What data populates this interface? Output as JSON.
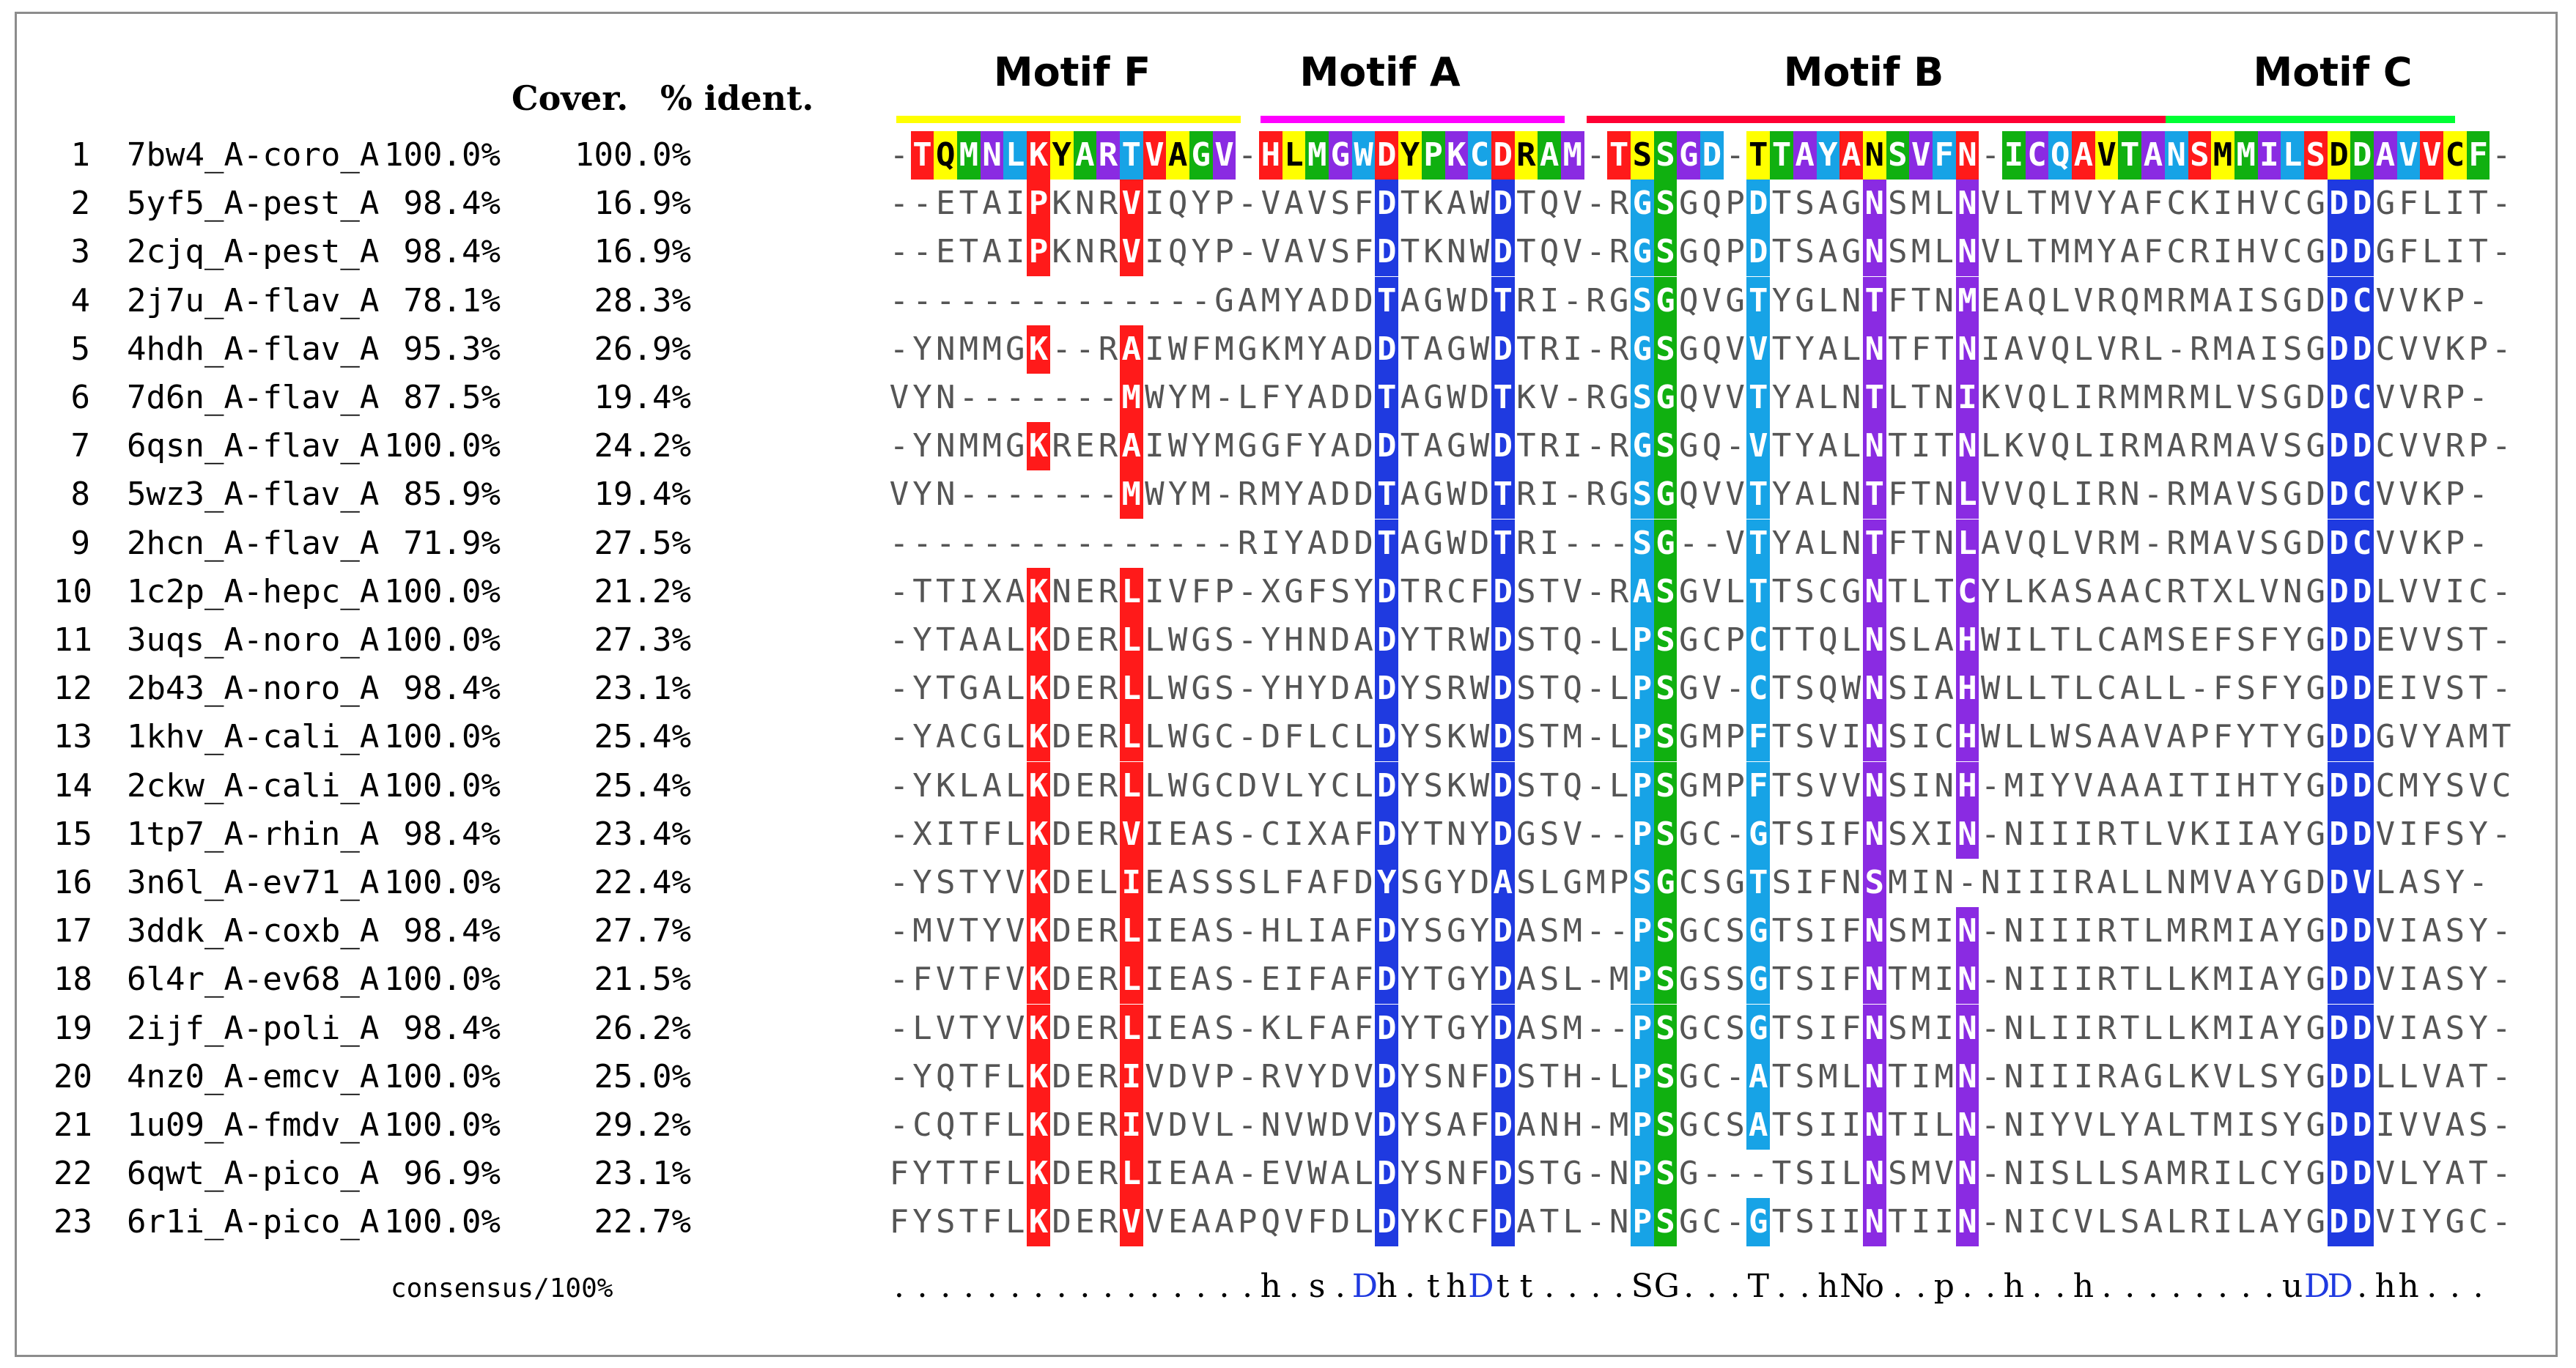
{
  "headers": {
    "cover": "Cover.",
    "identity": "% ident.",
    "consensus_label": "consensus/100%"
  },
  "motifs": [
    {
      "label": "Motif F",
      "color": "#ffff00"
    },
    {
      "label": "Motif A",
      "color": "#ff00ff"
    },
    {
      "label": "Motif B",
      "color": "#ff0033"
    },
    {
      "label": "Motif C",
      "color": "#00ff33"
    }
  ],
  "colors": {
    "green": "#10b010",
    "red": "#ff1a1a",
    "cyan": "#17a3e6",
    "blue": "#1f3ae0",
    "purple": "#8a2be2",
    "yellow": "#ffff00",
    "plain_text": "#555555"
  },
  "rows": [
    {
      "index": "1",
      "name": "7bw4_A-coro_A",
      "cover": "100.0%",
      "ident": "100.0%",
      "seq": "-TQMNLKYARTVAGV-HLMGWDYPKCDRAM-TSSGD-TTAYANSVFN-ICQAVTANSMMILSDDAVVCF-"
    },
    {
      "index": "2",
      "name": "5yf5_A-pest_A",
      "cover": "98.4%",
      "ident": "16.9%",
      "seq": "--ETAIPKNRVIQYP-VAVSFDTKAWDTQV-RGSGQPDTSAGNSMLNVLTMVYAFCKIHVCGDDGFLIT-"
    },
    {
      "index": "3",
      "name": "2cjq_A-pest_A",
      "cover": "98.4%",
      "ident": "16.9%",
      "seq": "--ETAIPKNRVIQYP-VAVSFDTKNWDTQV-RGSGQPDTSAGNSMLNVLTMMYAFCRIHVCGDDGFLIT-"
    },
    {
      "index": "4",
      "name": "2j7u_A-flav_A",
      "cover": "78.1%",
      "ident": "28.3%",
      "seq": "--------------GAMYADDTAGWDTRI-RGSGQVGTYGLNTFTNMEAQLVRQMRMAISGDDCVVKP-"
    },
    {
      "index": "5",
      "name": "4hdh_A-flav_A",
      "cover": "95.3%",
      "ident": "26.9%",
      "seq": "-YNMMGK--RAIWFMGKMYADDTAGWDTRI-RGSGQVVTYALNTFTNIAVQLVRL-RMAISGDDCVVKP-"
    },
    {
      "index": "6",
      "name": "7d6n_A-flav_A",
      "cover": "87.5%",
      "ident": "19.4%",
      "seq": "VYN-------MWYM-LFYADDTAGWDTKV-RGSGQVVTYALNTLTNIKVQLIRMMRMLVSGDDCVVRP-"
    },
    {
      "index": "7",
      "name": "6qsn_A-flav_A",
      "cover": "100.0%",
      "ident": "24.2%",
      "seq": "-YNMMGKRERAIWYMGGFYADDTAGWDTRI-RGSGQ-VTYALNTITNLKVQLIRMARMAVSGDDCVVRP-"
    },
    {
      "index": "8",
      "name": "5wz3_A-flav_A",
      "cover": "85.9%",
      "ident": "19.4%",
      "seq": "VYN-------MWYM-RMYADDTAGWDTRI-RGSGQVVTYALNTFTNLVVQLIRN-RMAVSGDDCVVKP-"
    },
    {
      "index": "9",
      "name": "2hcn_A-flav_A",
      "cover": "71.9%",
      "ident": "27.5%",
      "seq": "---------------RIYADDTAGWDTRI---SG--VTYALNTFTNLAVQLVRM-RMAVSGDDCVVKP-"
    },
    {
      "index": "10",
      "name": "1c2p_A-hepc_A",
      "cover": "100.0%",
      "ident": "21.2%",
      "seq": "-TTIXAKNERLIVFP-XGFSYDTRCFDSTV-RASGVLTTSCGNTLTCYLKASAACRTXLVNGDDLVVIC-"
    },
    {
      "index": "11",
      "name": "3uqs_A-noro_A",
      "cover": "100.0%",
      "ident": "27.3%",
      "seq": "-YTAALKDERLLWGS-YHNDADYTRWDSTQ-LPSGCPCTTQLNSLAHWILTLCAMSEFSFYGDDEVVST-"
    },
    {
      "index": "12",
      "name": "2b43_A-noro_A",
      "cover": "98.4%",
      "ident": "23.1%",
      "seq": "-YTGALKDERLLWGS-YHYDADYSRWDSTQ-LPSGV-CTSQWNSIAHWLLTLCALL-FSFYGDDEIVST-"
    },
    {
      "index": "13",
      "name": "1khv_A-cali_A",
      "cover": "100.0%",
      "ident": "25.4%",
      "seq": "-YACGLKDERLLWGC-DFLCLDYSKWDSTM-LPSGMPFTSVINSICHWLLWSAAVAPFYTYGDDGVYAMT"
    },
    {
      "index": "14",
      "name": "2ckw_A-cali_A",
      "cover": "100.0%",
      "ident": "25.4%",
      "seq": "-YKLALKDERLLWGCDVLYCLDYSKWDSTQ-LPSGMPFTSVVNSINH-MIYVAAAITIHTYGDDCMYSVC"
    },
    {
      "index": "15",
      "name": "1tp7_A-rhin_A",
      "cover": "98.4%",
      "ident": "23.4%",
      "seq": "-XITFLKDERVIEAS-CIXAFDYTNYDGSV--PSGC-GTSIFNSXIN-NIIIRTLVKIIAYGDDVIFSY-"
    },
    {
      "index": "16",
      "name": "3n6l_A-ev71_A",
      "cover": "100.0%",
      "ident": "22.4%",
      "seq": "-YSTYVKDELIEASSSLFAFDYSGYDASLGMPSGCSGTSIFNSMIN-NIIIRALLNMVAYGDDVLASY-"
    },
    {
      "index": "17",
      "name": "3ddk_A-coxb_A",
      "cover": "98.4%",
      "ident": "27.7%",
      "seq": "-MVTYVKDERLIEAS-HLIAFDYSGYDASM--PSGCSGTSIFNSMIN-NIIIRTLMRMIAYGDDVIASY-"
    },
    {
      "index": "18",
      "name": "6l4r_A-ev68_A",
      "cover": "100.0%",
      "ident": "21.5%",
      "seq": "-FVTFVKDERLIEAS-EIFAFDYTGYDASL-MPSGSSGTSIFNTMIN-NIIIRTLLKMIAYGDDVIASY-"
    },
    {
      "index": "19",
      "name": "2ijf_A-poli_A",
      "cover": "98.4%",
      "ident": "26.2%",
      "seq": "-LVTYVKDERLIEAS-KLFAFDYTGYDASM--PSGCSGTSIFNSMIN-NLIIRTLLKMIAYGDDVIASY-"
    },
    {
      "index": "20",
      "name": "4nz0_A-emcv_A",
      "cover": "100.0%",
      "ident": "25.0%",
      "seq": "-YQTFLKDERIVDVP-RVYDVDYSNFDSTH-LPSGC-ATSMLNTIMN-NIIIRAGLKVLSYGDDLLVAT-"
    },
    {
      "index": "21",
      "name": "1u09_A-fmdv_A",
      "cover": "100.0%",
      "ident": "29.2%",
      "seq": "-CQTFLKDERIVDVL-NVWDVDYSAFDANH-MPSGCSATSIINTILN-NIYVLYALTMISYGDDIVVAS-"
    },
    {
      "index": "22",
      "name": "6qwt_A-pico_A",
      "cover": "96.9%",
      "ident": "23.1%",
      "seq": "FYTTFLKDERLIEAA-EVWALDYSNFDSTG-NPSG---TSILNSMVN-NISLLSAMRILCYGDDVLYAT-"
    },
    {
      "index": "23",
      "name": "6r1i_A-pico_A",
      "cover": "100.0%",
      "ident": "22.7%",
      "seq": "FYSTFLKDERVVEAAPQVFDLDYKCFDATL-NPSGC-GTSIINTIIN-NICVLSALRILAYGDDVIYGC-"
    }
  ],
  "consensus": "................h.s.Dh.thDtt....SG...T..hNo..p..h..h........uDD.hh..."
}
